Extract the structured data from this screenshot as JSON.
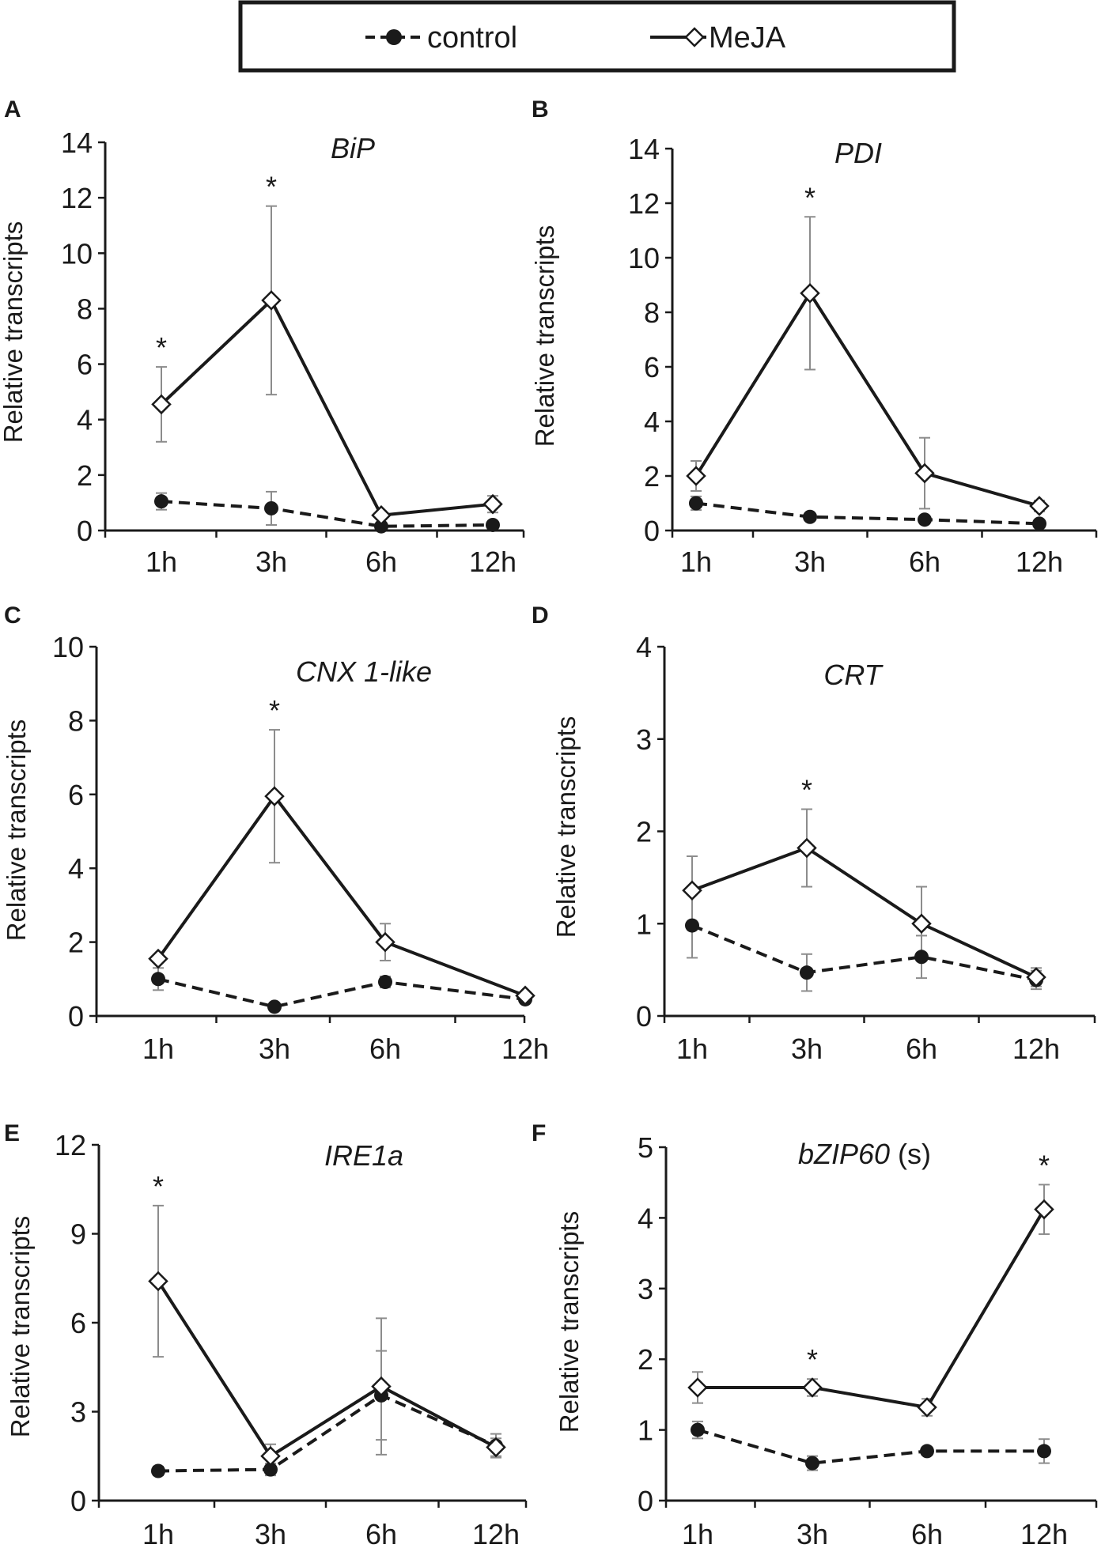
{
  "figure": {
    "legend": {
      "control_label": "control",
      "meja_label": "MeJA"
    },
    "ylabel": "Relative transcripts"
  },
  "chart_data": [
    {
      "panel": "A",
      "type": "line",
      "title": "BiP",
      "categories": [
        "1h",
        "3h",
        "6h",
        "12h"
      ],
      "xlabel": "",
      "ylabel": "Relative transcripts",
      "ylim": [
        0,
        14
      ],
      "yticks": [
        0,
        2,
        4,
        6,
        8,
        10,
        12,
        14
      ],
      "series": [
        {
          "name": "control",
          "values": [
            1.05,
            0.8,
            0.15,
            0.2
          ],
          "errors": [
            0.3,
            0.6,
            0.1,
            0.1
          ]
        },
        {
          "name": "MeJA",
          "values": [
            4.55,
            8.3,
            0.55,
            0.95
          ],
          "errors": [
            1.35,
            3.4,
            0.15,
            0.3
          ]
        }
      ],
      "significance": [
        0,
        1
      ]
    },
    {
      "panel": "B",
      "type": "line",
      "title": "PDI",
      "categories": [
        "1h",
        "3h",
        "6h",
        "12h"
      ],
      "xlabel": "",
      "ylabel": "Relative transcripts",
      "ylim": [
        0,
        14
      ],
      "yticks": [
        0,
        2,
        4,
        6,
        8,
        10,
        12,
        14
      ],
      "series": [
        {
          "name": "control",
          "values": [
            1.0,
            0.5,
            0.4,
            0.25
          ],
          "errors": [
            0.25,
            0.1,
            0.1,
            0.1
          ]
        },
        {
          "name": "MeJA",
          "values": [
            2.0,
            8.7,
            2.1,
            0.9
          ],
          "errors": [
            0.55,
            2.8,
            1.3,
            0.2
          ]
        }
      ],
      "significance": [
        1
      ]
    },
    {
      "panel": "C",
      "type": "line",
      "title": "CNX 1-like",
      "categories": [
        "1h",
        "3h",
        "6h",
        "12h"
      ],
      "xlabel": "",
      "ylabel": "Relative transcripts",
      "ylim": [
        0,
        10
      ],
      "yticks": [
        0,
        2,
        4,
        6,
        8,
        10
      ],
      "series": [
        {
          "name": "control",
          "values": [
            1.0,
            0.25,
            0.92,
            0.45
          ],
          "errors": [
            0.3,
            0.05,
            0.15,
            0.05
          ]
        },
        {
          "name": "MeJA",
          "values": [
            1.55,
            5.95,
            2.0,
            0.55
          ],
          "errors": [
            0.1,
            1.8,
            0.5,
            0.05
          ]
        }
      ],
      "significance": [
        1
      ]
    },
    {
      "panel": "D",
      "type": "line",
      "title": "CRT",
      "categories": [
        "1h",
        "3h",
        "6h",
        "12h"
      ],
      "xlabel": "",
      "ylabel": "Relative transcripts",
      "ylim": [
        0,
        4
      ],
      "yticks": [
        0,
        1,
        2,
        3,
        4
      ],
      "series": [
        {
          "name": "control",
          "values": [
            0.98,
            0.47,
            0.64,
            0.39
          ],
          "errors": [
            0.35,
            0.2,
            0.23,
            0.1
          ]
        },
        {
          "name": "MeJA",
          "values": [
            1.36,
            1.82,
            1.0,
            0.42
          ],
          "errors": [
            0.37,
            0.42,
            0.4,
            0.1
          ]
        }
      ],
      "significance": [
        1
      ]
    },
    {
      "panel": "E",
      "type": "line",
      "title": "IRE1a",
      "categories": [
        "1h",
        "3h",
        "6h",
        "12h"
      ],
      "xlabel": "",
      "ylabel": "Relative transcripts",
      "ylim": [
        0,
        12
      ],
      "yticks": [
        0,
        3,
        6,
        9,
        12
      ],
      "series": [
        {
          "name": "control",
          "values": [
            1.0,
            1.05,
            3.55,
            1.85
          ],
          "errors": [
            0.15,
            0.2,
            1.5,
            0.4
          ]
        },
        {
          "name": "MeJA",
          "values": [
            7.4,
            1.5,
            3.85,
            1.8
          ],
          "errors": [
            2.55,
            0.4,
            2.3,
            0.3
          ]
        }
      ],
      "significance": [
        0
      ]
    },
    {
      "panel": "F",
      "type": "line",
      "title": "bZIP60",
      "title_suffix": "(s)",
      "categories": [
        "1h",
        "3h",
        "6h",
        "12h"
      ],
      "xlabel": "",
      "ylabel": "Relative transcripts",
      "ylim": [
        0,
        5
      ],
      "yticks": [
        0,
        1,
        2,
        3,
        4,
        5
      ],
      "series": [
        {
          "name": "control",
          "values": [
            1.0,
            0.53,
            0.7,
            0.7
          ],
          "errors": [
            0.12,
            0.1,
            0.05,
            0.17
          ]
        },
        {
          "name": "MeJA",
          "values": [
            1.6,
            1.6,
            1.32,
            4.12
          ],
          "errors": [
            0.22,
            0.12,
            0.12,
            0.35
          ]
        }
      ],
      "significance": [
        1,
        3
      ]
    }
  ]
}
